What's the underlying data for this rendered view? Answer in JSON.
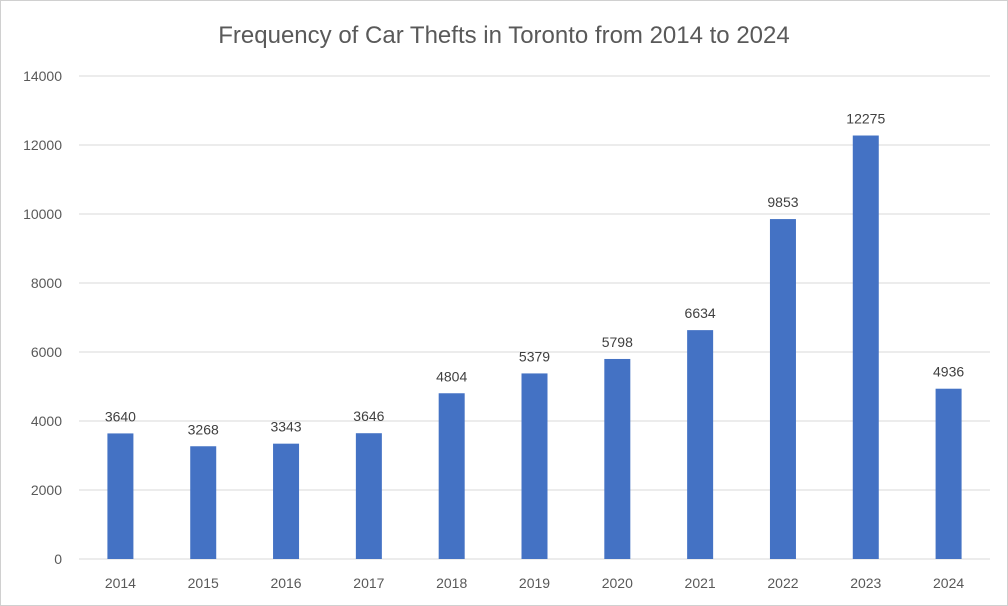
{
  "chart_data": {
    "type": "bar",
    "title": "Frequency of Car Thefts in Toronto from 2014 to 2024",
    "xlabel": "",
    "ylabel": "",
    "categories": [
      "2014",
      "2015",
      "2016",
      "2017",
      "2018",
      "2019",
      "2020",
      "2021",
      "2022",
      "2023",
      "2024"
    ],
    "values": [
      3640,
      3268,
      3343,
      3646,
      4804,
      5379,
      5798,
      6634,
      9853,
      12275,
      4936
    ],
    "ylim": [
      0,
      14000
    ],
    "yticks": [
      0,
      2000,
      4000,
      6000,
      8000,
      10000,
      12000,
      14000
    ],
    "grid": true,
    "legend": "none",
    "data_labels": true,
    "colors": {
      "bar": "#4472C4",
      "grid": "#d9d9d9",
      "text": "#595959"
    }
  }
}
